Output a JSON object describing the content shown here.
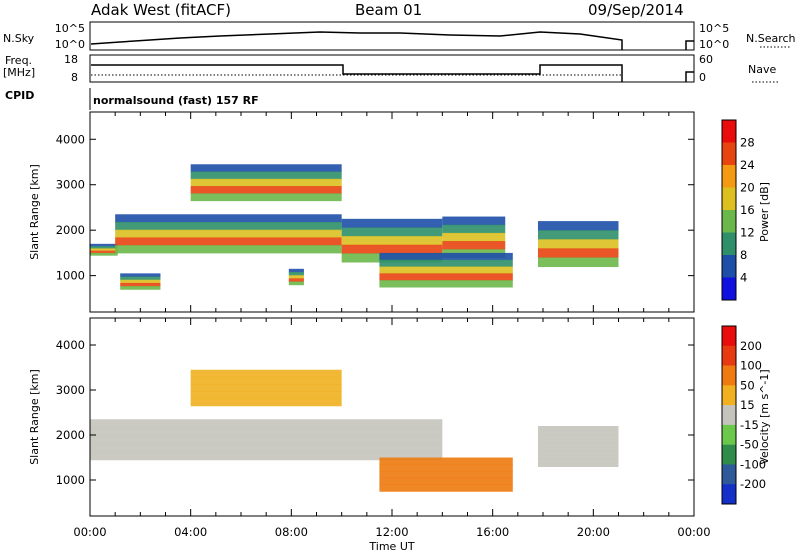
{
  "header": {
    "station": "Adak West (fitACF)",
    "beam": "Beam 01",
    "date": "09/Sep/2014"
  },
  "strips": {
    "nsky": {
      "label": "N.Sky",
      "tick_top": "10^5",
      "tick_bot": "10^0"
    },
    "nsearch": {
      "label": "N.Search",
      "tick_top": "10^5",
      "tick_bot": "10^0"
    },
    "freq": {
      "label1": "Freq.",
      "label2": "[MHz]",
      "tick_top": "18",
      "tick_bot": "8"
    },
    "nave": {
      "label": "Nave",
      "tick_top": "60",
      "tick_bot": "0"
    },
    "cpid": {
      "label": "CPID",
      "value": "normalsound (fast) 157 RF"
    }
  },
  "chart_data": [
    {
      "type": "heatmap",
      "name": "power",
      "ylabel": "Slant Range [km]",
      "xlabel": "",
      "xlim": [
        0,
        24
      ],
      "ylim": [
        200,
        4600
      ],
      "yticks": [
        "1000",
        "2000",
        "3000",
        "4000"
      ],
      "colorbar": {
        "label": "Power [dB]",
        "ticks": [
          "4",
          "8",
          "12",
          "16",
          "20",
          "24",
          "28"
        ],
        "colors": [
          "#1010e0",
          "#1e4fa8",
          "#2f8f6a",
          "#6bb84a",
          "#dcc020",
          "#f39a12",
          "#e84410",
          "#e80c0c"
        ]
      },
      "features": [
        {
          "start": 0.0,
          "end": 1.1,
          "range_low": 1450,
          "range_high": 1700
        },
        {
          "start": 1.0,
          "end": 10.0,
          "range_low": 1500,
          "range_high": 2350
        },
        {
          "start": 10.0,
          "end": 14.0,
          "range_low": 1300,
          "range_high": 2250
        },
        {
          "start": 14.0,
          "end": 16.5,
          "range_low": 1400,
          "range_high": 2300
        },
        {
          "start": 17.8,
          "end": 21.0,
          "range_low": 1200,
          "range_high": 2200
        },
        {
          "start": 4.0,
          "end": 10.0,
          "range_low": 2650,
          "range_high": 3450
        },
        {
          "start": 1.2,
          "end": 2.8,
          "range_low": 700,
          "range_high": 1050
        },
        {
          "start": 11.5,
          "end": 16.8,
          "range_low": 750,
          "range_high": 1500
        },
        {
          "start": 7.9,
          "end": 8.5,
          "range_low": 800,
          "range_high": 1150
        }
      ]
    },
    {
      "type": "heatmap",
      "name": "velocity",
      "ylabel": "Slant Range [km]",
      "xlabel": "Time UT",
      "xlim": [
        0,
        24
      ],
      "ylim": [
        200,
        4600
      ],
      "yticks": [
        "1000",
        "2000",
        "3000",
        "4000"
      ],
      "xticks": [
        "00:00",
        "04:00",
        "08:00",
        "12:00",
        "16:00",
        "20:00",
        "00:00"
      ],
      "colorbar": {
        "label": "Velocity [m s^-1]",
        "ticks": [
          "200",
          "100",
          "50",
          "15",
          "-15",
          "-50",
          "-100",
          "-200"
        ],
        "colors": [
          "#1530c8",
          "#2f5a9a",
          "#2f8c4a",
          "#6cc84a",
          "#c4c4bc",
          "#f0b020",
          "#ee7a10",
          "#e83a10",
          "#e80c0c"
        ]
      },
      "features": [
        {
          "start": 0.0,
          "end": 14.0,
          "range_low": 1450,
          "range_high": 2350
        },
        {
          "start": 4.0,
          "end": 10.0,
          "range_low": 2650,
          "range_high": 3450
        },
        {
          "start": 11.5,
          "end": 16.8,
          "range_low": 750,
          "range_high": 1500
        },
        {
          "start": 17.8,
          "end": 21.0,
          "range_low": 1300,
          "range_high": 2200
        }
      ]
    }
  ]
}
